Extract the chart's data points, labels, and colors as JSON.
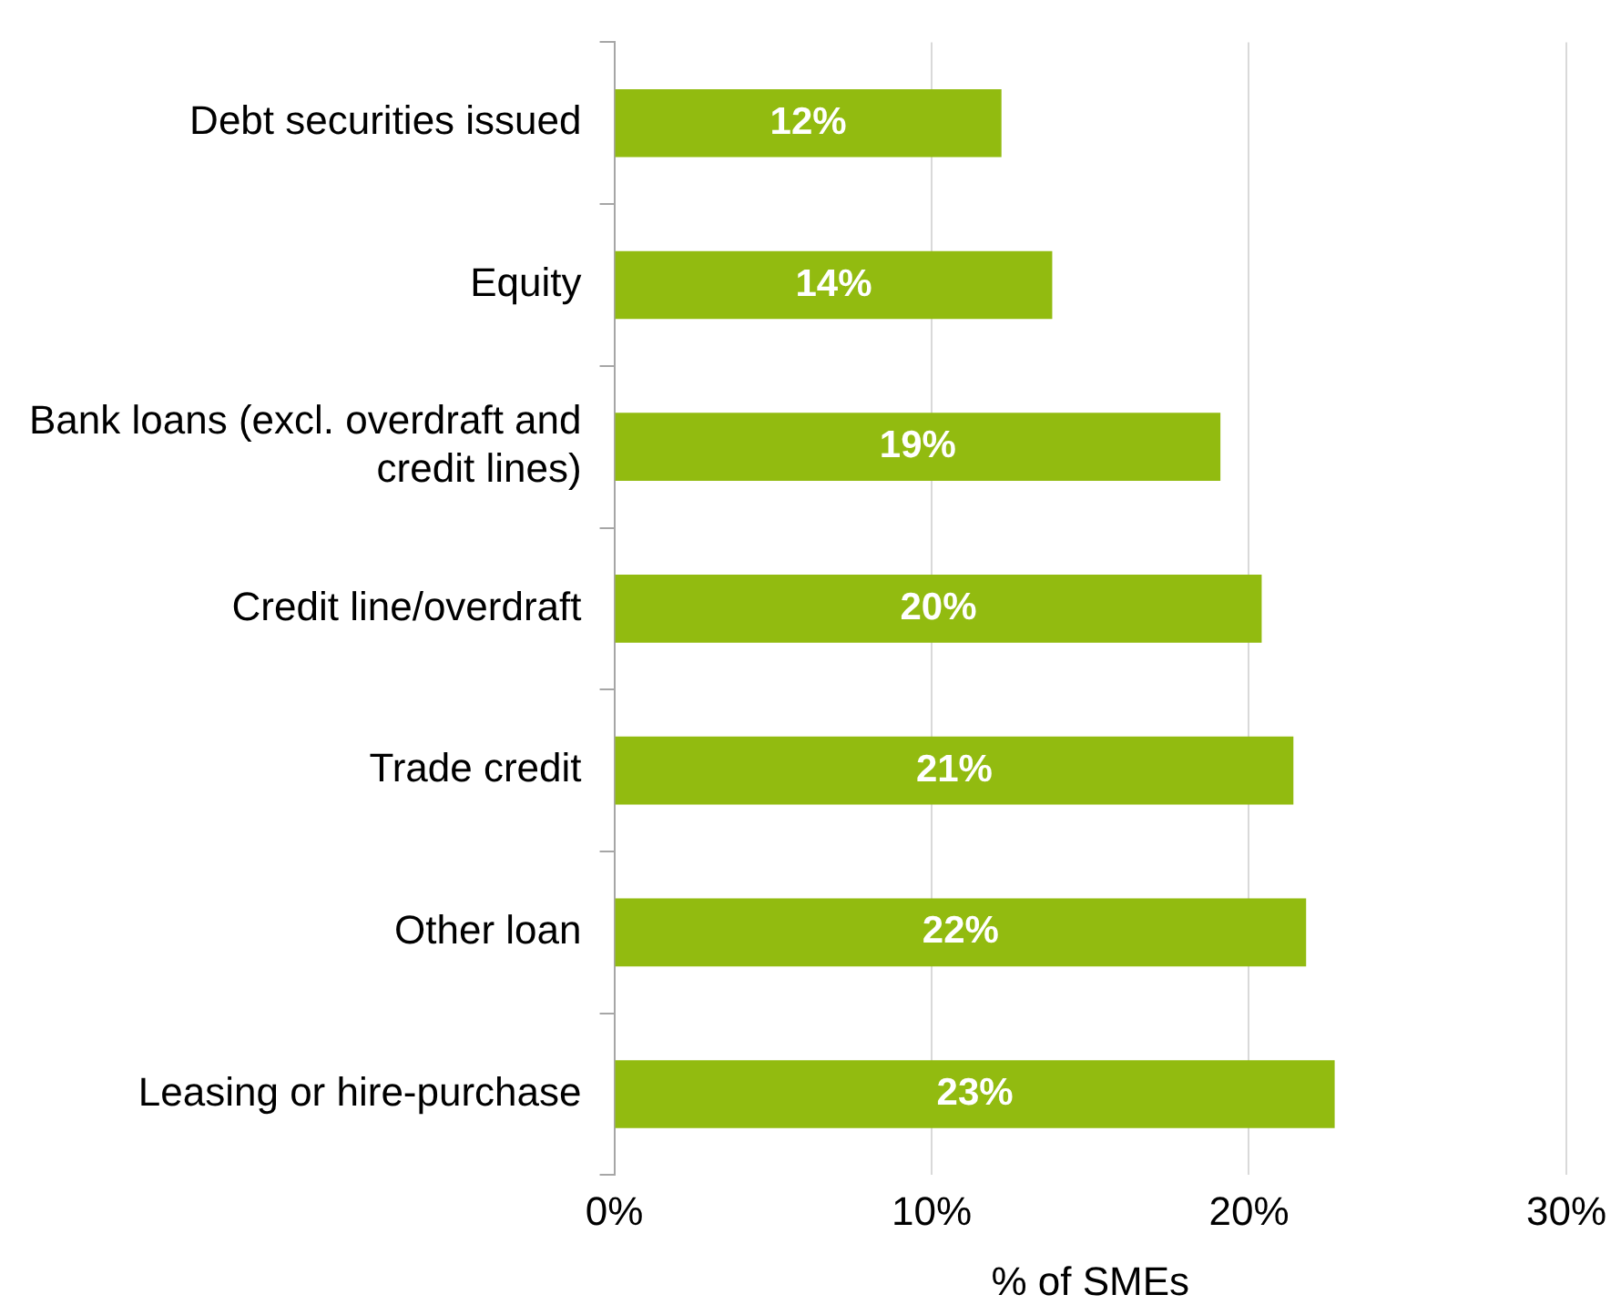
{
  "chart_data": {
    "type": "bar",
    "orientation": "horizontal",
    "xlabel": "% of SMEs",
    "categories": [
      "Debt securities issued",
      "Equity",
      "Bank loans (excl. overdraft and credit lines)",
      "Credit line/overdraft",
      "Trade credit",
      "Other loan",
      "Leasing or hire-purchase"
    ],
    "values": [
      12.2,
      13.8,
      19.1,
      20.4,
      21.4,
      21.8,
      22.7
    ],
    "value_labels": [
      "12%",
      "14%",
      "19%",
      "20%",
      "21%",
      "22%",
      "23%"
    ],
    "color": "#92bb10",
    "xlim": [
      0,
      30
    ],
    "xticks": [
      {
        "value": 0,
        "label": "0%"
      },
      {
        "value": 10,
        "label": "10%"
      },
      {
        "value": 20,
        "label": "20%"
      },
      {
        "value": 30,
        "label": "30%"
      }
    ],
    "grid": "x",
    "legend": false
  }
}
